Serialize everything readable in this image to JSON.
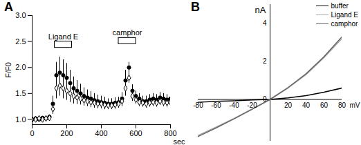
{
  "chart_data": [
    {
      "panel": "A",
      "type": "scatter",
      "x_label": "sec",
      "y_label": "F/F0",
      "x": [
        0,
        20,
        40,
        60,
        80,
        100,
        120,
        140,
        160,
        180,
        200,
        220,
        240,
        260,
        280,
        300,
        320,
        340,
        360,
        380,
        400,
        420,
        440,
        460,
        480,
        500,
        520,
        540,
        560,
        580,
        600,
        620,
        640,
        660,
        680,
        700,
        720,
        740,
        760,
        780,
        800
      ],
      "series": [
        {
          "color": "#000000",
          "marker": "circle",
          "values": [
            1.0,
            1.02,
            1.0,
            1.03,
            1.02,
            1.05,
            1.3,
            1.85,
            1.9,
            1.85,
            1.8,
            1.7,
            1.6,
            1.55,
            1.5,
            1.45,
            1.42,
            1.4,
            1.37,
            1.35,
            1.33,
            1.32,
            1.3,
            1.3,
            1.32,
            1.33,
            1.4,
            1.75,
            2.0,
            1.55,
            1.45,
            1.4,
            1.35,
            1.35,
            1.38,
            1.4,
            1.38,
            1.42,
            1.4,
            1.38,
            1.4
          ],
          "errors": [
            0.03,
            0.03,
            0.03,
            0.03,
            0.03,
            0.04,
            0.15,
            0.25,
            0.3,
            0.3,
            0.28,
            0.25,
            0.22,
            0.2,
            0.18,
            0.16,
            0.15,
            0.14,
            0.13,
            0.12,
            0.12,
            0.11,
            0.1,
            0.1,
            0.1,
            0.1,
            0.12,
            0.2,
            0.1,
            0.12,
            0.1,
            0.1,
            0.1,
            0.1,
            0.1,
            0.1,
            0.1,
            0.1,
            0.1,
            0.1,
            0.1
          ]
        },
        {
          "color": "#000000",
          "marker": "open diamond",
          "values": [
            1.0,
            1.0,
            1.02,
            1.0,
            1.02,
            1.03,
            1.2,
            1.6,
            1.65,
            1.6,
            1.55,
            1.5,
            1.45,
            1.42,
            1.4,
            1.37,
            1.35,
            1.33,
            1.32,
            1.3,
            1.3,
            1.28,
            1.27,
            1.27,
            1.28,
            1.3,
            1.35,
            1.6,
            1.8,
            1.45,
            1.38,
            1.33,
            1.32,
            1.3,
            1.32,
            1.33,
            1.32,
            1.35,
            1.33,
            1.32,
            1.33
          ],
          "errors": [
            0.03,
            0.03,
            0.03,
            0.03,
            0.03,
            0.03,
            0.1,
            0.2,
            0.2,
            0.2,
            0.18,
            0.17,
            0.15,
            0.13,
            0.12,
            0.11,
            0.1,
            0.1,
            0.1,
            0.09,
            0.09,
            0.09,
            0.08,
            0.08,
            0.08,
            0.08,
            0.1,
            0.15,
            0.1,
            0.1,
            0.08,
            0.08,
            0.08,
            0.08,
            0.08,
            0.08,
            0.08,
            0.08,
            0.08,
            0.08,
            0.08
          ]
        }
      ],
      "annotations": [
        {
          "text": "Ligand E",
          "x1": 130,
          "x2": 230,
          "y1": 2.38,
          "y2": 2.5
        },
        {
          "text": "camphor",
          "x1": 500,
          "x2": 600,
          "y1": 2.45,
          "y2": 2.57
        }
      ],
      "xlim": [
        0,
        800
      ],
      "xticks": [
        0,
        200,
        400,
        600,
        800
      ],
      "ylim": [
        0.9,
        3.0
      ],
      "yticks": [
        {
          "value": 1.0,
          "label": "1.0"
        },
        {
          "value": 1.5,
          "label": "1.5"
        },
        {
          "value": 2.0,
          "label": "2.0"
        },
        {
          "value": 2.5,
          "label": "2.5"
        },
        {
          "value": 3.0,
          "label": "3.0"
        }
      ]
    },
    {
      "panel": "B",
      "type": "line",
      "x_label": "mV",
      "y_label": "nA",
      "x": [
        -80,
        -60,
        -40,
        -20,
        0,
        20,
        40,
        60,
        80
      ],
      "series": [
        {
          "name": "buffer",
          "color": "#000000",
          "values": [
            -0.15,
            -0.1,
            -0.07,
            -0.03,
            0,
            0.08,
            0.2,
            0.38,
            0.6
          ]
        },
        {
          "name": "Ligand E",
          "color": "#aaaaaa",
          "values": [
            -1.9,
            -1.45,
            -1.0,
            -0.5,
            0,
            0.6,
            1.3,
            2.2,
            3.2
          ]
        },
        {
          "name": "camphor",
          "color": "#666666",
          "values": [
            -1.95,
            -1.5,
            -1.02,
            -0.52,
            0,
            0.62,
            1.35,
            2.25,
            3.3
          ]
        }
      ],
      "xlim": [
        -80,
        80
      ],
      "xticks": [
        -80,
        -60,
        -40,
        -20,
        20,
        40,
        60,
        80
      ],
      "ylim": [
        -2.2,
        5
      ],
      "yticks": [
        0,
        2,
        4
      ],
      "legend": "top-right"
    }
  ]
}
